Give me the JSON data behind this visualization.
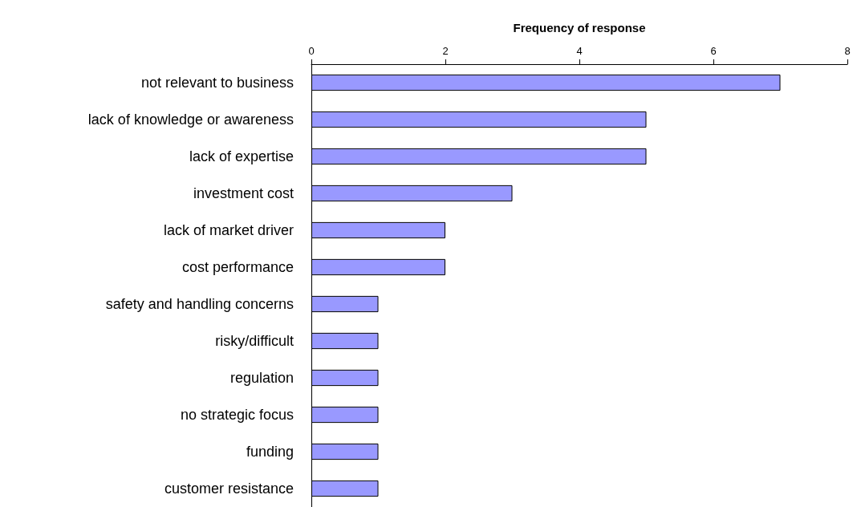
{
  "chart_data": {
    "type": "bar",
    "orientation": "horizontal",
    "xlabel": "Frequency of response",
    "categories": [
      "not relevant to business",
      "lack of knowledge or awareness",
      "lack of expertise",
      "investment cost",
      "lack of market driver",
      "cost performance",
      "safety and handling concerns",
      "risky/difficult",
      "regulation",
      "no strategic focus",
      "funding",
      "customer resistance"
    ],
    "values": [
      7,
      5,
      5,
      3,
      2,
      2,
      1,
      1,
      1,
      1,
      1,
      1
    ],
    "color": "#9999ff",
    "xlim": [
      0,
      8
    ],
    "xticks": [
      0,
      2,
      4,
      6,
      8
    ]
  }
}
